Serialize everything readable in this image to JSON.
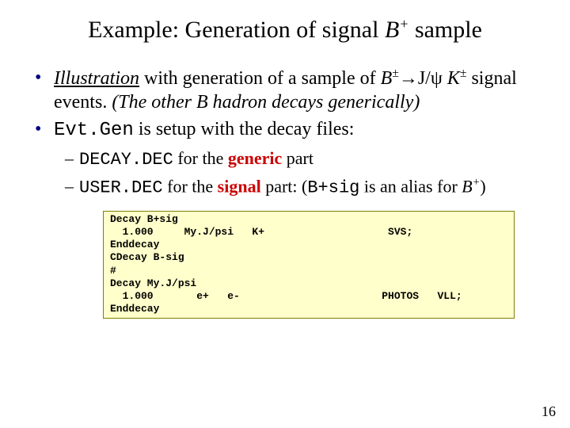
{
  "title": {
    "prefix": "Example: Generation of signal ",
    "symbol_base": "B",
    "symbol_sup": "+",
    "suffix": " sample"
  },
  "bullets": {
    "b1": {
      "illustration": "Illustration",
      "line1_rest": " with generation of a sample of ",
      "bpm_base": "B",
      "bpm_sup": "±",
      "arrow": "→",
      "jpsi": "J/ψ ",
      "kpm_base": "K",
      "kpm_sup": "±",
      "signal_events": " signal events. ",
      "italic_rest": "(The other B hadron decays generically)"
    },
    "b2": {
      "evtgen": "Evt.Gen",
      "rest": " is setup with the decay files:"
    }
  },
  "subbullets": {
    "s1": {
      "file": "DECAY.DEC",
      "mid": " for the ",
      "keyword": "generic",
      "end": " part"
    },
    "s2": {
      "file": "USER.DEC",
      "mid": " for the ",
      "keyword": "signal",
      "end1": " part: (",
      "alias": "B+sig",
      "end2": " is an alias for ",
      "bp_base": "B",
      "bp_sup": "+",
      "end3": ")"
    }
  },
  "code": "Decay B+sig\n  1.000     My.J/psi   K+                    SVS;\nEnddecay\nCDecay B-sig\n#\nDecay My.J/psi\n  1.000       e+   e-                       PHOTOS   VLL;\nEnddecay",
  "pagenum": "16",
  "colors": {
    "bullet_marker": "#000080",
    "keyword": "#cc0000",
    "codebox_bg": "#ffffcc",
    "codebox_border": "#808000"
  }
}
